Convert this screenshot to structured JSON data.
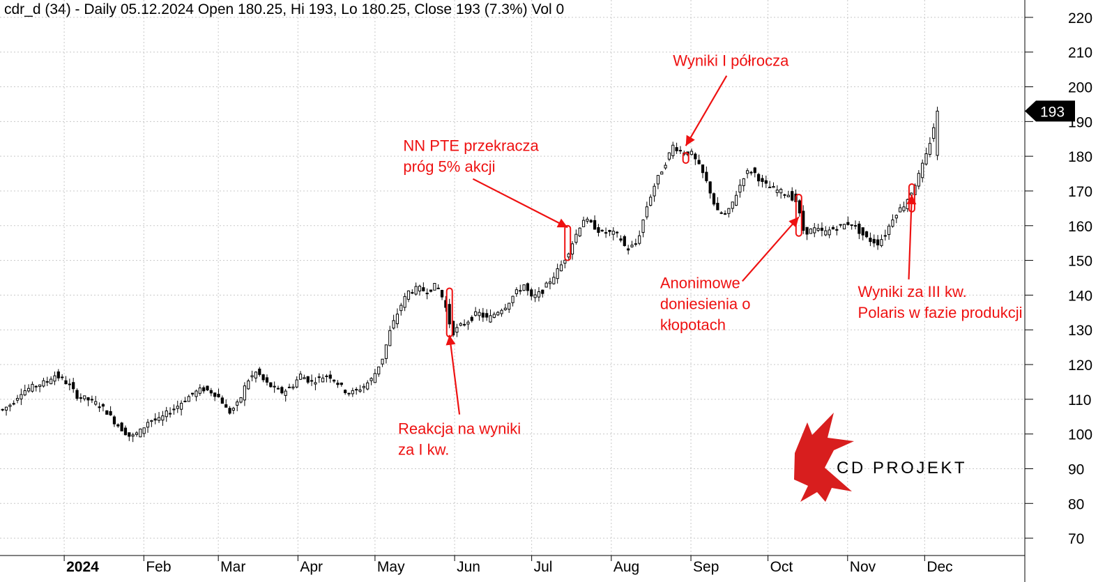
{
  "header": {
    "text": "cdr_d (34) - Daily 05.12.2024 Open 180.25, Hi 193, Lo 180.25, Close 193 (7.3%) Vol 0"
  },
  "chart_data": {
    "type": "candlestick",
    "x_labels": [
      {
        "label": "2024",
        "day": 0,
        "bold": true
      },
      {
        "label": "Feb",
        "day": 31
      },
      {
        "label": "Mar",
        "day": 60
      },
      {
        "label": "Apr",
        "day": 91
      },
      {
        "label": "May",
        "day": 121
      },
      {
        "label": "Jun",
        "day": 152
      },
      {
        "label": "Jul",
        "day": 182
      },
      {
        "label": "Aug",
        "day": 213
      },
      {
        "label": "Sep",
        "day": 244
      },
      {
        "label": "Oct",
        "day": 274
      },
      {
        "label": "Nov",
        "day": 305
      },
      {
        "label": "Dec",
        "day": 335
      }
    ],
    "x_range_days": [
      -25,
      374
    ],
    "y_ticks": [
      70,
      80,
      90,
      100,
      110,
      120,
      130,
      140,
      150,
      160,
      170,
      180,
      190,
      200,
      210,
      220
    ],
    "ylim": [
      65,
      225
    ],
    "last_price_label": "193",
    "last_price": 193,
    "price_path": [
      [
        -24,
        107
      ],
      [
        -20,
        109
      ],
      [
        -17,
        112
      ],
      [
        -14,
        113
      ],
      [
        -11,
        114
      ],
      [
        -7,
        115
      ],
      [
        -4,
        117
      ],
      [
        -1,
        116
      ],
      [
        2,
        114
      ],
      [
        5,
        111
      ],
      [
        9,
        110
      ],
      [
        12,
        109
      ],
      [
        16,
        107
      ],
      [
        19,
        104
      ],
      [
        23,
        101
      ],
      [
        26,
        99
      ],
      [
        30,
        101
      ],
      [
        33,
        104
      ],
      [
        37,
        104
      ],
      [
        40,
        106
      ],
      [
        44,
        108
      ],
      [
        47,
        110
      ],
      [
        51,
        112
      ],
      [
        54,
        113
      ],
      [
        58,
        112
      ],
      [
        61,
        110
      ],
      [
        64,
        106
      ],
      [
        68,
        109
      ],
      [
        71,
        115
      ],
      [
        75,
        118
      ],
      [
        78,
        115
      ],
      [
        82,
        113
      ],
      [
        85,
        112
      ],
      [
        89,
        114
      ],
      [
        92,
        117
      ],
      [
        96,
        115
      ],
      [
        99,
        116
      ],
      [
        103,
        117
      ],
      [
        106,
        115
      ],
      [
        110,
        112
      ],
      [
        113,
        112
      ],
      [
        117,
        114
      ],
      [
        120,
        116
      ],
      [
        124,
        122
      ],
      [
        127,
        130
      ],
      [
        131,
        137
      ],
      [
        134,
        141
      ],
      [
        138,
        142
      ],
      [
        141,
        141
      ],
      [
        145,
        143
      ],
      [
        148,
        138
      ],
      [
        151,
        129
      ],
      [
        154,
        131
      ],
      [
        158,
        133
      ],
      [
        161,
        135
      ],
      [
        165,
        133
      ],
      [
        168,
        135
      ],
      [
        172,
        137
      ],
      [
        175,
        140
      ],
      [
        179,
        143
      ],
      [
        182,
        139
      ],
      [
        186,
        141
      ],
      [
        189,
        144
      ],
      [
        193,
        148
      ],
      [
        196,
        152
      ],
      [
        199,
        157
      ],
      [
        202,
        162
      ],
      [
        206,
        160
      ],
      [
        209,
        158
      ],
      [
        213,
        158
      ],
      [
        216,
        157
      ],
      [
        219,
        153
      ],
      [
        223,
        155
      ],
      [
        227,
        166
      ],
      [
        230,
        172
      ],
      [
        234,
        178
      ],
      [
        237,
        183
      ],
      [
        241,
        181
      ],
      [
        244,
        181
      ],
      [
        248,
        176
      ],
      [
        251,
        171
      ],
      [
        254,
        164
      ],
      [
        258,
        163
      ],
      [
        261,
        168
      ],
      [
        265,
        175
      ],
      [
        268,
        176
      ],
      [
        272,
        172
      ],
      [
        275,
        171
      ],
      [
        278,
        170
      ],
      [
        282,
        169
      ],
      [
        285,
        167
      ],
      [
        288,
        158
      ],
      [
        292,
        159
      ],
      [
        296,
        158
      ],
      [
        299,
        159
      ],
      [
        303,
        160
      ],
      [
        306,
        161
      ],
      [
        310,
        158
      ],
      [
        313,
        156
      ],
      [
        317,
        155
      ],
      [
        320,
        158
      ],
      [
        323,
        163
      ],
      [
        327,
        166
      ],
      [
        330,
        170
      ],
      [
        333,
        175
      ],
      [
        336,
        181
      ],
      [
        340,
        193
      ]
    ],
    "annotations": [
      {
        "lines": [
          "Reakcja na wyniki",
          "za I kw."
        ],
        "day": 130,
        "value": 100,
        "target_day": 150,
        "target_value": 128.5
      },
      {
        "lines": [
          "NN PTE przekracza",
          "próg 5% akcji"
        ],
        "day": 132,
        "value": 181.5,
        "target_day": 196,
        "target_value": 159.5
      },
      {
        "lines": [
          "Wyniki I półrocza"
        ],
        "day": 237,
        "value": 206,
        "target_day": 242,
        "target_value": 183
      },
      {
        "lines": [
          "Anonimowe",
          "doniesienia o",
          "kłopotach"
        ],
        "day": 232,
        "value": 142,
        "target_day": 286,
        "target_value": 162.5
      },
      {
        "lines": [
          "Wyniki za III kw.",
          "Polaris w fazie produkcji"
        ],
        "day": 309,
        "value": 139.5,
        "target_day": 330,
        "target_value": 169
      }
    ],
    "highlights": [
      {
        "day": 150,
        "low": 128,
        "high": 142
      },
      {
        "day": 196,
        "low": 150,
        "high": 160
      },
      {
        "day": 242,
        "low": 178,
        "high": 181
      },
      {
        "day": 286,
        "low": 157,
        "high": 169
      },
      {
        "day": 330,
        "low": 164,
        "high": 172
      }
    ],
    "grid": "dotted",
    "legend": "none"
  },
  "logo": {
    "text": "CD PROJEKT",
    "color": "#d81e1e"
  },
  "colors": {
    "annotation": "#ee1111",
    "candle": "#000000",
    "grid": "#c8c8c8"
  }
}
